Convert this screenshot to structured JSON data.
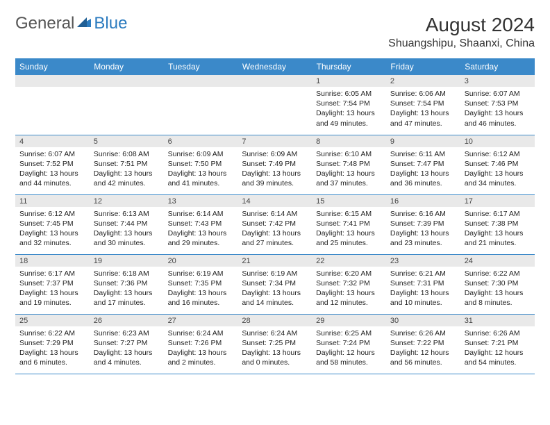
{
  "logo": {
    "text1": "General",
    "text2": "Blue"
  },
  "title": "August 2024",
  "location": "Shuangshipu, Shaanxi, China",
  "colors": {
    "header_bg": "#3b89c9",
    "header_text": "#ffffff",
    "daynum_bg": "#e9e9e9",
    "border": "#3b89c9",
    "logo_gray": "#555555",
    "logo_blue": "#2b7bbf"
  },
  "day_headers": [
    "Sunday",
    "Monday",
    "Tuesday",
    "Wednesday",
    "Thursday",
    "Friday",
    "Saturday"
  ],
  "weeks": [
    [
      {
        "n": "",
        "sr": "",
        "ss": "",
        "dl": ""
      },
      {
        "n": "",
        "sr": "",
        "ss": "",
        "dl": ""
      },
      {
        "n": "",
        "sr": "",
        "ss": "",
        "dl": ""
      },
      {
        "n": "",
        "sr": "",
        "ss": "",
        "dl": ""
      },
      {
        "n": "1",
        "sr": "Sunrise: 6:05 AM",
        "ss": "Sunset: 7:54 PM",
        "dl": "Daylight: 13 hours and 49 minutes."
      },
      {
        "n": "2",
        "sr": "Sunrise: 6:06 AM",
        "ss": "Sunset: 7:54 PM",
        "dl": "Daylight: 13 hours and 47 minutes."
      },
      {
        "n": "3",
        "sr": "Sunrise: 6:07 AM",
        "ss": "Sunset: 7:53 PM",
        "dl": "Daylight: 13 hours and 46 minutes."
      }
    ],
    [
      {
        "n": "4",
        "sr": "Sunrise: 6:07 AM",
        "ss": "Sunset: 7:52 PM",
        "dl": "Daylight: 13 hours and 44 minutes."
      },
      {
        "n": "5",
        "sr": "Sunrise: 6:08 AM",
        "ss": "Sunset: 7:51 PM",
        "dl": "Daylight: 13 hours and 42 minutes."
      },
      {
        "n": "6",
        "sr": "Sunrise: 6:09 AM",
        "ss": "Sunset: 7:50 PM",
        "dl": "Daylight: 13 hours and 41 minutes."
      },
      {
        "n": "7",
        "sr": "Sunrise: 6:09 AM",
        "ss": "Sunset: 7:49 PM",
        "dl": "Daylight: 13 hours and 39 minutes."
      },
      {
        "n": "8",
        "sr": "Sunrise: 6:10 AM",
        "ss": "Sunset: 7:48 PM",
        "dl": "Daylight: 13 hours and 37 minutes."
      },
      {
        "n": "9",
        "sr": "Sunrise: 6:11 AM",
        "ss": "Sunset: 7:47 PM",
        "dl": "Daylight: 13 hours and 36 minutes."
      },
      {
        "n": "10",
        "sr": "Sunrise: 6:12 AM",
        "ss": "Sunset: 7:46 PM",
        "dl": "Daylight: 13 hours and 34 minutes."
      }
    ],
    [
      {
        "n": "11",
        "sr": "Sunrise: 6:12 AM",
        "ss": "Sunset: 7:45 PM",
        "dl": "Daylight: 13 hours and 32 minutes."
      },
      {
        "n": "12",
        "sr": "Sunrise: 6:13 AM",
        "ss": "Sunset: 7:44 PM",
        "dl": "Daylight: 13 hours and 30 minutes."
      },
      {
        "n": "13",
        "sr": "Sunrise: 6:14 AM",
        "ss": "Sunset: 7:43 PM",
        "dl": "Daylight: 13 hours and 29 minutes."
      },
      {
        "n": "14",
        "sr": "Sunrise: 6:14 AM",
        "ss": "Sunset: 7:42 PM",
        "dl": "Daylight: 13 hours and 27 minutes."
      },
      {
        "n": "15",
        "sr": "Sunrise: 6:15 AM",
        "ss": "Sunset: 7:41 PM",
        "dl": "Daylight: 13 hours and 25 minutes."
      },
      {
        "n": "16",
        "sr": "Sunrise: 6:16 AM",
        "ss": "Sunset: 7:39 PM",
        "dl": "Daylight: 13 hours and 23 minutes."
      },
      {
        "n": "17",
        "sr": "Sunrise: 6:17 AM",
        "ss": "Sunset: 7:38 PM",
        "dl": "Daylight: 13 hours and 21 minutes."
      }
    ],
    [
      {
        "n": "18",
        "sr": "Sunrise: 6:17 AM",
        "ss": "Sunset: 7:37 PM",
        "dl": "Daylight: 13 hours and 19 minutes."
      },
      {
        "n": "19",
        "sr": "Sunrise: 6:18 AM",
        "ss": "Sunset: 7:36 PM",
        "dl": "Daylight: 13 hours and 17 minutes."
      },
      {
        "n": "20",
        "sr": "Sunrise: 6:19 AM",
        "ss": "Sunset: 7:35 PM",
        "dl": "Daylight: 13 hours and 16 minutes."
      },
      {
        "n": "21",
        "sr": "Sunrise: 6:19 AM",
        "ss": "Sunset: 7:34 PM",
        "dl": "Daylight: 13 hours and 14 minutes."
      },
      {
        "n": "22",
        "sr": "Sunrise: 6:20 AM",
        "ss": "Sunset: 7:32 PM",
        "dl": "Daylight: 13 hours and 12 minutes."
      },
      {
        "n": "23",
        "sr": "Sunrise: 6:21 AM",
        "ss": "Sunset: 7:31 PM",
        "dl": "Daylight: 13 hours and 10 minutes."
      },
      {
        "n": "24",
        "sr": "Sunrise: 6:22 AM",
        "ss": "Sunset: 7:30 PM",
        "dl": "Daylight: 13 hours and 8 minutes."
      }
    ],
    [
      {
        "n": "25",
        "sr": "Sunrise: 6:22 AM",
        "ss": "Sunset: 7:29 PM",
        "dl": "Daylight: 13 hours and 6 minutes."
      },
      {
        "n": "26",
        "sr": "Sunrise: 6:23 AM",
        "ss": "Sunset: 7:27 PM",
        "dl": "Daylight: 13 hours and 4 minutes."
      },
      {
        "n": "27",
        "sr": "Sunrise: 6:24 AM",
        "ss": "Sunset: 7:26 PM",
        "dl": "Daylight: 13 hours and 2 minutes."
      },
      {
        "n": "28",
        "sr": "Sunrise: 6:24 AM",
        "ss": "Sunset: 7:25 PM",
        "dl": "Daylight: 13 hours and 0 minutes."
      },
      {
        "n": "29",
        "sr": "Sunrise: 6:25 AM",
        "ss": "Sunset: 7:24 PM",
        "dl": "Daylight: 12 hours and 58 minutes."
      },
      {
        "n": "30",
        "sr": "Sunrise: 6:26 AM",
        "ss": "Sunset: 7:22 PM",
        "dl": "Daylight: 12 hours and 56 minutes."
      },
      {
        "n": "31",
        "sr": "Sunrise: 6:26 AM",
        "ss": "Sunset: 7:21 PM",
        "dl": "Daylight: 12 hours and 54 minutes."
      }
    ]
  ]
}
